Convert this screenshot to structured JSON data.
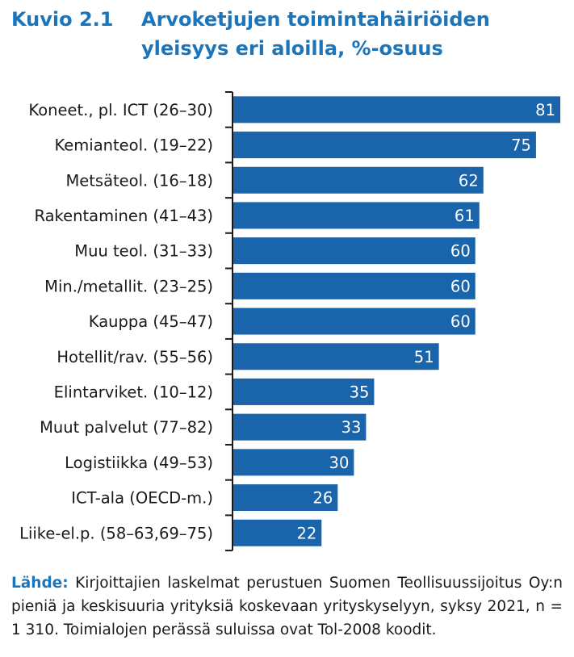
{
  "figure": {
    "number": "Kuvio 2.1",
    "title": "Arvoketjujen toimintahäiriöiden yleisyys eri aloilla, %-osuus"
  },
  "colors": {
    "bar": "#1a64ab",
    "title": "#1b75bb",
    "axis": "#1a1a1a",
    "label": "#1a1a1a",
    "value_label": "#ffffff"
  },
  "chart_data": {
    "type": "bar",
    "orientation": "horizontal",
    "title": "",
    "xlabel": "",
    "ylabel": "",
    "xlim": [
      0,
      81
    ],
    "grid": false,
    "legend": "none",
    "categories": [
      "Koneet., pl. ICT (26–30)",
      "Kemianteol. (19–22)",
      "Metsäteol. (16–18)",
      "Rakentaminen (41–43)",
      "Muu teol. (31–33)",
      "Min./metallit. (23–25)",
      "Kauppa (45–47)",
      "Hotellit/rav. (55–56)",
      "Elintarviket. (10–12)",
      "Muut palvelut (77–82)",
      "Logistiikka (49–53)",
      "ICT-ala (OECD-m.)",
      "Liike-el.p. (58–63,69–75)"
    ],
    "values": [
      81,
      75,
      62,
      61,
      60,
      60,
      60,
      51,
      35,
      33,
      30,
      26,
      22
    ],
    "data_labels": [
      "81",
      "75",
      "62",
      "61",
      "60",
      "60",
      "60",
      "51",
      "35",
      "33",
      "30",
      "26",
      "22"
    ]
  },
  "source": {
    "label": "Lähde:",
    "text": "Kirjoittajien laskelmat perustuen Suomen Teollisuussijoitus Oy:n pieniä ja keskisuuria yrityksiä koskevaan yrityskyselyyn, syksy 2021, n = 1 310. Toimialojen perässä suluissa ovat Tol-2008 koodit."
  }
}
